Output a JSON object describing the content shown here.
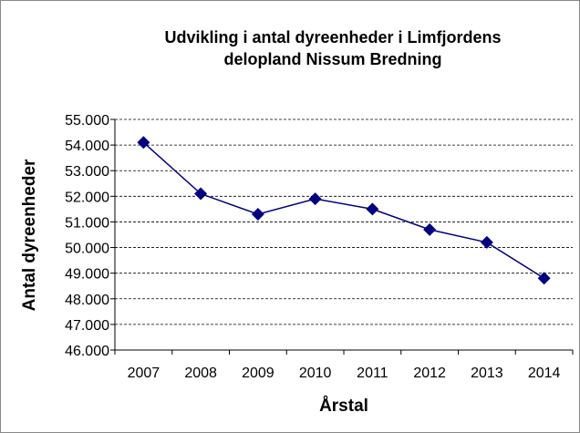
{
  "chart_data": {
    "type": "line",
    "title": [
      "Udvikling i antal dyreenheder i Limfjordens",
      "delopland Nissum Bredning"
    ],
    "x_label": "Årstal",
    "y_label": "Antal dyreenheder",
    "categories": [
      "2007",
      "2008",
      "2009",
      "2010",
      "2011",
      "2012",
      "2013",
      "2014"
    ],
    "series": [
      {
        "name": "Antal dyreenheder",
        "color": "#000080",
        "values": [
          54100,
          52100,
          51300,
          51900,
          51500,
          50700,
          50200,
          48800
        ]
      }
    ],
    "ylim": [
      46000,
      55000
    ],
    "yticks": [
      {
        "value": 46000,
        "label": "46.000"
      },
      {
        "value": 47000,
        "label": "47.000"
      },
      {
        "value": 48000,
        "label": "48.000"
      },
      {
        "value": 49000,
        "label": "49.000"
      },
      {
        "value": 50000,
        "label": "50.000"
      },
      {
        "value": 51000,
        "label": "51.000"
      },
      {
        "value": 52000,
        "label": "52.000"
      },
      {
        "value": 53000,
        "label": "53.000"
      },
      {
        "value": 54000,
        "label": "54.000"
      },
      {
        "value": 55000,
        "label": "55.000"
      }
    ],
    "grid": true,
    "legend": false
  }
}
